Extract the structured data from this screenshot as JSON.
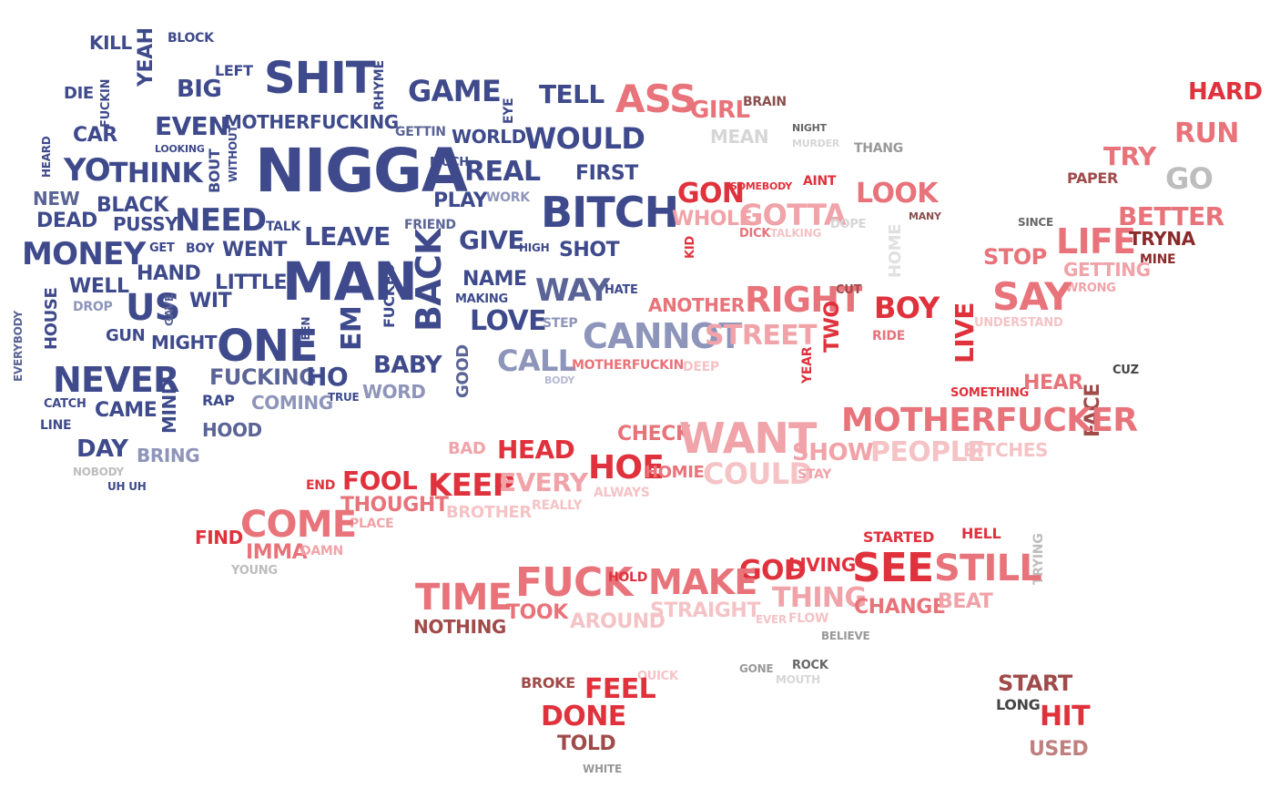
{
  "word_cloud": {
    "palette": {
      "navy": "#3e4a8b",
      "slate": "#5a6496",
      "lavender": "#8e95ba",
      "pale_blue": "#b6bad2",
      "red": "#e0323c",
      "salmon": "#e8737a",
      "pink": "#f0a3a8",
      "pale_pink": "#f5c3c6",
      "maroon": "#a04a4a",
      "brown": "#8a4e4e",
      "gray": "#bdbdbd",
      "dark": "#444444"
    },
    "words": [
      {
        "text": "KILL",
        "color": "#3e4a8b"
      },
      {
        "text": "BLOCK",
        "color": "#3e4a8b"
      },
      {
        "text": "YEAH",
        "color": "#3e4a8b"
      },
      {
        "text": "FUCKIN",
        "color": "#3e4a8b"
      },
      {
        "text": "DIE",
        "color": "#3e4a8b"
      },
      {
        "text": "BIG",
        "color": "#3e4a8b"
      },
      {
        "text": "LEFT",
        "color": "#3e4a8b"
      },
      {
        "text": "SHIT",
        "color": "#3e4a8b"
      },
      {
        "text": "RHYME",
        "color": "#3e4a8b"
      },
      {
        "text": "GAME",
        "color": "#3e4a8b"
      },
      {
        "text": "EYE",
        "color": "#3e4a8b"
      },
      {
        "text": "TELL",
        "color": "#3e4a8b"
      },
      {
        "text": "EVEN",
        "color": "#3e4a8b"
      },
      {
        "text": "MOTHERFUCKING",
        "color": "#3e4a8b"
      },
      {
        "text": "CAR",
        "color": "#3e4a8b"
      },
      {
        "text": "LOOKING",
        "color": "#3e4a8b"
      },
      {
        "text": "WITHOUT",
        "color": "#3e4a8b"
      },
      {
        "text": "GETTIN",
        "color": "#5a6496"
      },
      {
        "text": "WORLD",
        "color": "#3e4a8b"
      },
      {
        "text": "WOULD",
        "color": "#3e4a8b"
      },
      {
        "text": "HEARD",
        "color": "#3e4a8b"
      },
      {
        "text": "YO",
        "color": "#3e4a8b"
      },
      {
        "text": "THINK",
        "color": "#3e4a8b"
      },
      {
        "text": "BOUT",
        "color": "#3e4a8b"
      },
      {
        "text": "NIGGA",
        "color": "#3e4a8b"
      },
      {
        "text": "MUCH",
        "color": "#3e4a8b"
      },
      {
        "text": "REAL",
        "color": "#3e4a8b"
      },
      {
        "text": "FIRST",
        "color": "#3e4a8b"
      },
      {
        "text": "NEW",
        "color": "#5a6496"
      },
      {
        "text": "BLACK",
        "color": "#3e4a8b"
      },
      {
        "text": "PLAY",
        "color": "#3e4a8b"
      },
      {
        "text": "WORK",
        "color": "#8e95ba"
      },
      {
        "text": "BITCH",
        "color": "#3e4a8b"
      },
      {
        "text": "DEAD",
        "color": "#3e4a8b"
      },
      {
        "text": "PUSSY",
        "color": "#3e4a8b"
      },
      {
        "text": "NEED",
        "color": "#3e4a8b"
      },
      {
        "text": "TALK",
        "color": "#3e4a8b"
      },
      {
        "text": "LEAVE",
        "color": "#3e4a8b"
      },
      {
        "text": "FRIEND",
        "color": "#5a6496"
      },
      {
        "text": "GIVE",
        "color": "#3e4a8b"
      },
      {
        "text": "HIGH",
        "color": "#3e4a8b"
      },
      {
        "text": "SHOT",
        "color": "#3e4a8b"
      },
      {
        "text": "MONEY",
        "color": "#3e4a8b"
      },
      {
        "text": "GET",
        "color": "#3e4a8b"
      },
      {
        "text": "BOY",
        "color": "#3e4a8b"
      },
      {
        "text": "WENT",
        "color": "#3e4a8b"
      },
      {
        "text": "WELL",
        "color": "#3e4a8b"
      },
      {
        "text": "HAND",
        "color": "#3e4a8b"
      },
      {
        "text": "MAN",
        "color": "#3e4a8b"
      },
      {
        "text": "FUCKED",
        "color": "#3e4a8b"
      },
      {
        "text": "BACK",
        "color": "#3e4a8b"
      },
      {
        "text": "NAME",
        "color": "#3e4a8b"
      },
      {
        "text": "MAKING",
        "color": "#3e4a8b"
      },
      {
        "text": "WAY",
        "color": "#5a6496"
      },
      {
        "text": "HATE",
        "color": "#3e4a8b"
      },
      {
        "text": "LITTLE",
        "color": "#3e4a8b"
      },
      {
        "text": "US",
        "color": "#3e4a8b"
      },
      {
        "text": "GAVE",
        "color": "#5a6496"
      },
      {
        "text": "WIT",
        "color": "#3e4a8b"
      },
      {
        "text": "DROP",
        "color": "#8e95ba"
      },
      {
        "text": "HOUSE",
        "color": "#3e4a8b"
      },
      {
        "text": "LOVE",
        "color": "#3e4a8b"
      },
      {
        "text": "STEP",
        "color": "#8e95ba"
      },
      {
        "text": "EVERYBODY",
        "color": "#5a6496"
      },
      {
        "text": "GUN",
        "color": "#3e4a8b"
      },
      {
        "text": "MIGHT",
        "color": "#3e4a8b"
      },
      {
        "text": "ONE",
        "color": "#3e4a8b"
      },
      {
        "text": "SEEN",
        "color": "#3e4a8b"
      },
      {
        "text": "EM",
        "color": "#3e4a8b"
      },
      {
        "text": "CANNOT",
        "color": "#8e95ba"
      },
      {
        "text": "NEVER",
        "color": "#3e4a8b"
      },
      {
        "text": "BABY",
        "color": "#3e4a8b"
      },
      {
        "text": "GOOD",
        "color": "#5a6496"
      },
      {
        "text": "CALL",
        "color": "#8e95ba"
      },
      {
        "text": "FUCKING",
        "color": "#5a6496"
      },
      {
        "text": "HO",
        "color": "#3e4a8b"
      },
      {
        "text": "MOTHERFUCKIN",
        "color": "#e8737a"
      },
      {
        "text": "BODY",
        "color": "#b6bad2"
      },
      {
        "text": "CATCH",
        "color": "#3e4a8b"
      },
      {
        "text": "CAME",
        "color": "#3e4a8b"
      },
      {
        "text": "MIND",
        "color": "#3e4a8b"
      },
      {
        "text": "RAP",
        "color": "#3e4a8b"
      },
      {
        "text": "COMING",
        "color": "#8e95ba"
      },
      {
        "text": "TRUE",
        "color": "#3e4a8b"
      },
      {
        "text": "WORD",
        "color": "#8e95ba"
      },
      {
        "text": "LINE",
        "color": "#3e4a8b"
      },
      {
        "text": "HOOD",
        "color": "#5a6496"
      },
      {
        "text": "DAY",
        "color": "#3e4a8b"
      },
      {
        "text": "BRING",
        "color": "#8e95ba"
      },
      {
        "text": "NOBODY",
        "color": "#bdbdbd"
      },
      {
        "text": "UH UH",
        "color": "#3e4a8b"
      },
      {
        "text": "ASS",
        "color": "#e8737a"
      },
      {
        "text": "GIRL",
        "color": "#e8737a"
      },
      {
        "text": "BRAIN",
        "color": "#8a4e4e"
      },
      {
        "text": "MEAN",
        "color": "#d6d6d6"
      },
      {
        "text": "NIGHT",
        "color": "#666666"
      },
      {
        "text": "MURDER",
        "color": "#d6d6d6"
      },
      {
        "text": "THANG",
        "color": "#999999"
      },
      {
        "text": "GON",
        "color": "#e0323c"
      },
      {
        "text": "SOMEBODY",
        "color": "#e0323c"
      },
      {
        "text": "AINT",
        "color": "#e0323c"
      },
      {
        "text": "LOOK",
        "color": "#e8737a"
      },
      {
        "text": "MANY",
        "color": "#8a4e4e"
      },
      {
        "text": "WHOLE",
        "color": "#f0a3a8"
      },
      {
        "text": "GOTTA",
        "color": "#f0a3a8"
      },
      {
        "text": "DOPE",
        "color": "#d6d6d6"
      },
      {
        "text": "KID",
        "color": "#e0323c"
      },
      {
        "text": "DICK",
        "color": "#e8737a"
      },
      {
        "text": "TALKING",
        "color": "#f5c3c6"
      },
      {
        "text": "HOME",
        "color": "#e0e0e0"
      },
      {
        "text": "ANOTHER",
        "color": "#e8737a"
      },
      {
        "text": "RIGHT",
        "color": "#e8737a"
      },
      {
        "text": "CUT",
        "color": "#a04a4a"
      },
      {
        "text": "TWO",
        "color": "#e0323c"
      },
      {
        "text": "BOY",
        "color": "#e0323c"
      },
      {
        "text": "LIVE",
        "color": "#e0323c"
      },
      {
        "text": "RIDE",
        "color": "#e8737a"
      },
      {
        "text": "STREET",
        "color": "#f0a3a8"
      },
      {
        "text": "YEAR",
        "color": "#e0323c"
      },
      {
        "text": "DEEP",
        "color": "#f5c3c6"
      },
      {
        "text": "HARD",
        "color": "#e0323c"
      },
      {
        "text": "RUN",
        "color": "#e8737a"
      },
      {
        "text": "TRY",
        "color": "#e8737a"
      },
      {
        "text": "PAPER",
        "color": "#a04a4a"
      },
      {
        "text": "GO",
        "color": "#bdbdbd"
      },
      {
        "text": "SINCE",
        "color": "#666666"
      },
      {
        "text": "BETTER",
        "color": "#e8737a"
      },
      {
        "text": "LIFE",
        "color": "#e8737a"
      },
      {
        "text": "TRYNA",
        "color": "#8a2a2a"
      },
      {
        "text": "STOP",
        "color": "#e8737a"
      },
      {
        "text": "MINE",
        "color": "#8a2a2a"
      },
      {
        "text": "GETTING",
        "color": "#f0a3a8"
      },
      {
        "text": "WRONG",
        "color": "#f0a3a8"
      },
      {
        "text": "SAY",
        "color": "#e8737a"
      },
      {
        "text": "UNDERSTAND",
        "color": "#f5c3c6"
      },
      {
        "text": "SOMETHING",
        "color": "#e0323c"
      },
      {
        "text": "HEAR",
        "color": "#e8737a"
      },
      {
        "text": "FACE",
        "color": "#a04a4a"
      },
      {
        "text": "CUZ",
        "color": "#444444"
      },
      {
        "text": "MOTHERFUCKER",
        "color": "#e8737a"
      },
      {
        "text": "BITCHES",
        "color": "#f5c3c6"
      },
      {
        "text": "CHECK",
        "color": "#e8737a"
      },
      {
        "text": "WANT",
        "color": "#f0a3a8"
      },
      {
        "text": "SHOW",
        "color": "#f0a3a8"
      },
      {
        "text": "PEOPLE",
        "color": "#f5c3c6"
      },
      {
        "text": "BAD",
        "color": "#f0a3a8"
      },
      {
        "text": "HEAD",
        "color": "#e0323c"
      },
      {
        "text": "HOE",
        "color": "#e0323c"
      },
      {
        "text": "HOMIE",
        "color": "#e8737a"
      },
      {
        "text": "COULD",
        "color": "#f5c3c6"
      },
      {
        "text": "STAY",
        "color": "#f0a3a8"
      },
      {
        "text": "END",
        "color": "#e0323c"
      },
      {
        "text": "FOOL",
        "color": "#e0323c"
      },
      {
        "text": "KEEP",
        "color": "#e0323c"
      },
      {
        "text": "EVERY",
        "color": "#f0a3a8"
      },
      {
        "text": "ALWAYS",
        "color": "#f5c3c6"
      },
      {
        "text": "THOUGHT",
        "color": "#e8737a"
      },
      {
        "text": "BROTHER",
        "color": "#f5c3c6"
      },
      {
        "text": "REALLY",
        "color": "#f5c3c6"
      },
      {
        "text": "PLACE",
        "color": "#f0a3a8"
      },
      {
        "text": "FIND",
        "color": "#e0323c"
      },
      {
        "text": "COME",
        "color": "#e8737a"
      },
      {
        "text": "IMMA",
        "color": "#e8737a"
      },
      {
        "text": "DAMN",
        "color": "#f0a3a8"
      },
      {
        "text": "YOUNG",
        "color": "#bdbdbd"
      },
      {
        "text": "STARTED",
        "color": "#e0323c"
      },
      {
        "text": "HELL",
        "color": "#e0323c"
      },
      {
        "text": "TRYING",
        "color": "#bdbdbd"
      },
      {
        "text": "GOD",
        "color": "#e0323c"
      },
      {
        "text": "LIVING",
        "color": "#e0323c"
      },
      {
        "text": "SEE",
        "color": "#e0323c"
      },
      {
        "text": "STILL",
        "color": "#e8737a"
      },
      {
        "text": "TIME",
        "color": "#e8737a"
      },
      {
        "text": "FUCK",
        "color": "#e8737a"
      },
      {
        "text": "HOLD",
        "color": "#e0323c"
      },
      {
        "text": "MAKE",
        "color": "#e8737a"
      },
      {
        "text": "THING",
        "color": "#f0a3a8"
      },
      {
        "text": "CHANGE",
        "color": "#e8737a"
      },
      {
        "text": "BEAT",
        "color": "#f0a3a8"
      },
      {
        "text": "TOOK",
        "color": "#e8737a"
      },
      {
        "text": "STRAIGHT",
        "color": "#f5c3c6"
      },
      {
        "text": "NOTHING",
        "color": "#a04a4a"
      },
      {
        "text": "AROUND",
        "color": "#f5c3c6"
      },
      {
        "text": "EVER",
        "color": "#f5c3c6"
      },
      {
        "text": "FLOW",
        "color": "#f5c3c6"
      },
      {
        "text": "BELIEVE",
        "color": "#999999"
      },
      {
        "text": "BROKE",
        "color": "#a04a4a"
      },
      {
        "text": "QUICK",
        "color": "#f5c3c6"
      },
      {
        "text": "GONE",
        "color": "#999999"
      },
      {
        "text": "ROCK",
        "color": "#666666"
      },
      {
        "text": "MOUTH",
        "color": "#d6d6d6"
      },
      {
        "text": "FEEL",
        "color": "#e0323c"
      },
      {
        "text": "DONE",
        "color": "#e0323c"
      },
      {
        "text": "TOLD",
        "color": "#a04a4a"
      },
      {
        "text": "WHITE",
        "color": "#999999"
      },
      {
        "text": "START",
        "color": "#a04a4a"
      },
      {
        "text": "LONG",
        "color": "#444444"
      },
      {
        "text": "HIT",
        "color": "#e0323c"
      },
      {
        "text": "USED",
        "color": "#c08080"
      }
    ]
  }
}
